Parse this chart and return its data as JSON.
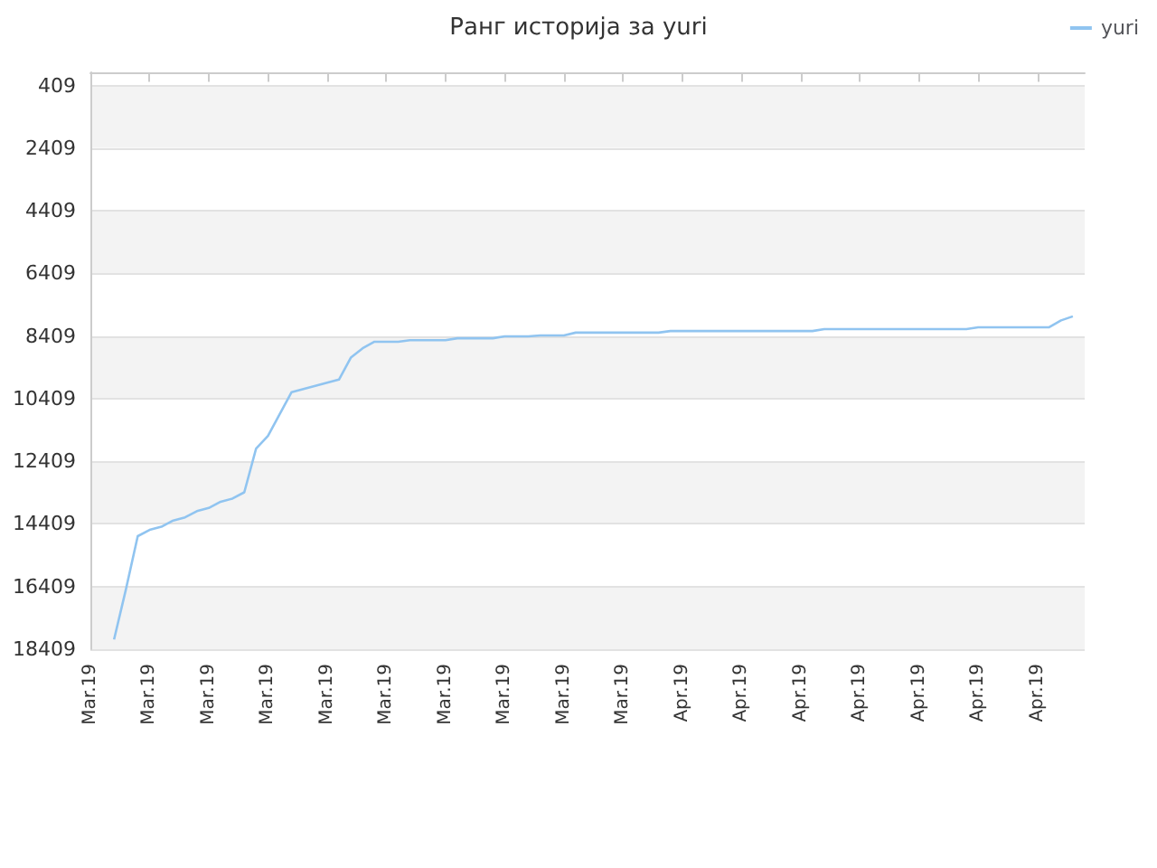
{
  "chart_data": {
    "type": "line",
    "title": "Ранг историја за yuri",
    "legend": "top right",
    "grid": "y",
    "marker": "none",
    "line_style": "solid",
    "categories": [
      "Mar.19",
      null,
      null,
      null,
      null,
      "Mar.19",
      null,
      null,
      null,
      null,
      "Mar.19",
      null,
      null,
      null,
      null,
      "Mar.19",
      null,
      null,
      null,
      null,
      "Mar.19",
      null,
      null,
      null,
      null,
      "Mar.19",
      null,
      null,
      null,
      null,
      "Mar.19",
      null,
      null,
      null,
      null,
      "Mar.19",
      null,
      null,
      null,
      null,
      "Mar.19",
      null,
      null,
      null,
      null,
      "Mar.19",
      null,
      null,
      null,
      null,
      "Apr.19",
      null,
      null,
      null,
      null,
      "Apr.19",
      null,
      null,
      null,
      null,
      "Apr.19",
      null,
      null,
      null,
      null,
      "Apr.19",
      null,
      null,
      null,
      null,
      "Apr.19",
      null,
      null,
      null,
      null,
      "Apr.19",
      null,
      null,
      null,
      null,
      "Apr.19",
      null,
      null,
      null,
      null
    ],
    "ylim": [
      18409,
      -12
    ],
    "yticks": [
      409,
      2409,
      4409,
      6409,
      8409,
      10409,
      12409,
      14409,
      16409,
      18409
    ],
    "series": [
      {
        "name": "yuri",
        "color": "#90c4f0",
        "values": [
          null,
          null,
          18100,
          16500,
          14800,
          14600,
          14500,
          14300,
          14200,
          14000,
          13900,
          13700,
          13600,
          13400,
          12000,
          11600,
          10900,
          10200,
          10100,
          10000,
          9900,
          9800,
          9100,
          8800,
          8590,
          8590,
          8590,
          8540,
          8540,
          8540,
          8540,
          8480,
          8480,
          8480,
          8480,
          8420,
          8420,
          8420,
          8390,
          8390,
          8390,
          8300,
          8300,
          8300,
          8300,
          8300,
          8300,
          8300,
          8300,
          8250,
          8250,
          8250,
          8250,
          8250,
          8250,
          8250,
          8250,
          8250,
          8250,
          8250,
          8250,
          8250,
          8190,
          8190,
          8190,
          8190,
          8190,
          8190,
          8190,
          8190,
          8190,
          8190,
          8190,
          8190,
          8190,
          8130,
          8130,
          8130,
          8130,
          8130,
          8130,
          8130,
          7910,
          7780,
          null
        ]
      }
    ]
  }
}
